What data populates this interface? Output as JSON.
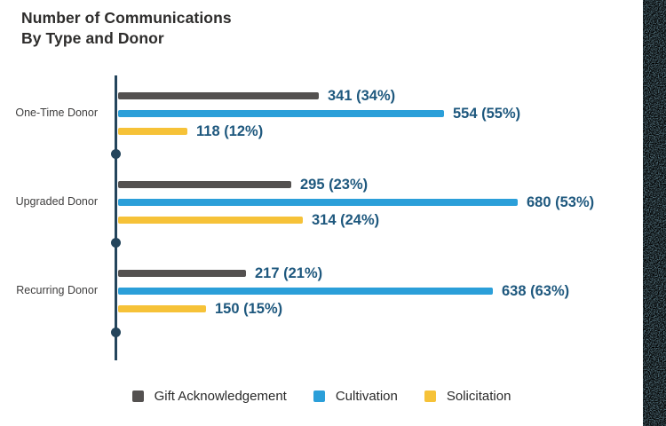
{
  "title": {
    "line1": "Number of Communications",
    "line2": "By Type and Donor"
  },
  "chart_data": {
    "type": "bar",
    "orientation": "horizontal",
    "title": "Number of Communications By Type and Donor",
    "categories": [
      "One-Time Donor",
      "Upgraded Donor",
      "Recurring Donor"
    ],
    "series": [
      {
        "name": "Gift Acknowledgement",
        "color": "#545150",
        "values": [
          341,
          295,
          217
        ],
        "percents": [
          34,
          23,
          21
        ],
        "labels": [
          "341 (34%)",
          "295 (23%)",
          "217 (21%)"
        ]
      },
      {
        "name": "Cultivation",
        "color": "#2b9fd9",
        "values": [
          554,
          680,
          638
        ],
        "percents": [
          55,
          53,
          63
        ],
        "labels": [
          "554 (55%)",
          "680 (53%)",
          "638 (63%)"
        ]
      },
      {
        "name": "Solicitation",
        "color": "#f6c238",
        "values": [
          118,
          314,
          150
        ],
        "percents": [
          12,
          24,
          15
        ],
        "labels": [
          "118 (12%)",
          "314 (24%)",
          "150 (15%)"
        ]
      }
    ],
    "value_axis_max": 680,
    "grid": false,
    "legend_position": "bottom",
    "data_labels": true
  },
  "colors": {
    "axis": "#24455c",
    "value_label": "#1e587e",
    "title_text": "#2e2d2c",
    "category_label": "#3f3e3e",
    "legend_text": "#2a2a2a",
    "noise_strip": "#516e79",
    "background": "#ffffff"
  }
}
